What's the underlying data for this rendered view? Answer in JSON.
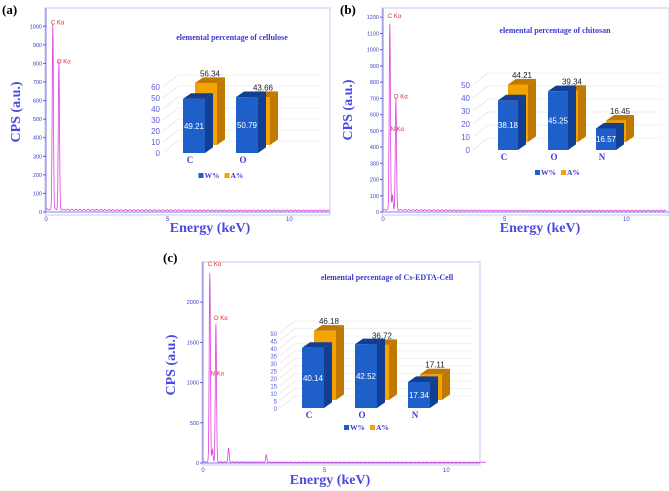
{
  "chart_data": [
    {
      "panel": "(a)",
      "type": "line",
      "xlabel": "Energy (keV)",
      "ylabel": "CPS (a.u.)",
      "xlim": [
        0,
        12
      ],
      "ylim": [
        0,
        1050
      ],
      "xticks": [
        0,
        5,
        10
      ],
      "yticks": [
        0,
        100,
        200,
        300,
        400,
        500,
        600,
        700,
        800,
        900,
        1000
      ],
      "peaks": [
        {
          "label": "C Kα",
          "energy": 0.28,
          "cps": 1000,
          "label_cps": 1010
        },
        {
          "label": "O Kα",
          "energy": 0.53,
          "cps": 800,
          "label_cps": 800
        }
      ],
      "inset": {
        "type": "bar3d",
        "title": "elemental percentage of cellulose",
        "categories": [
          "C",
          "O"
        ],
        "ylim": [
          0,
          60
        ],
        "yticks": [
          0,
          10,
          20,
          30,
          40,
          50,
          60
        ],
        "series": [
          {
            "name": "W%",
            "color": "#1f5fc9",
            "values": [
              49.21,
              50.79
            ]
          },
          {
            "name": "A%",
            "color": "#f5a300",
            "values": [
              56.34,
              43.66
            ]
          }
        ]
      }
    },
    {
      "panel": "(b)",
      "type": "line",
      "xlabel": "Energy (keV)",
      "ylabel": "CPS (a.u.)",
      "xlim": [
        0,
        12
      ],
      "ylim": [
        0,
        1220
      ],
      "xticks": [
        0,
        5,
        10
      ],
      "yticks": [
        0,
        100,
        200,
        300,
        400,
        500,
        600,
        700,
        800,
        900,
        1000,
        1100,
        1200
      ],
      "peaks": [
        {
          "label": "C Kα",
          "energy": 0.28,
          "cps": 1150,
          "label_cps": 1195
        },
        {
          "label": "N Kα",
          "energy": 0.39,
          "cps": 90,
          "label_cps": 500
        },
        {
          "label": "O Kα",
          "energy": 0.53,
          "cps": 690,
          "label_cps": 700
        }
      ],
      "inset": {
        "type": "bar3d",
        "title": "elemental percentage of chitosan",
        "categories": [
          "C",
          "O",
          "N"
        ],
        "ylim": [
          0,
          50
        ],
        "yticks": [
          0,
          10,
          20,
          30,
          40,
          50
        ],
        "series": [
          {
            "name": "W%",
            "color": "#1f5fc9",
            "values": [
              38.18,
              45.25,
              16.57
            ]
          },
          {
            "name": "A%",
            "color": "#f5a300",
            "values": [
              44.21,
              39.34,
              16.45
            ]
          }
        ]
      }
    },
    {
      "panel": "(c)",
      "type": "line",
      "xlabel": "Energy (keV)",
      "ylabel": "CPS (a.u.)",
      "xlim": [
        0,
        12
      ],
      "ylim": [
        0,
        2500
      ],
      "xticks": [
        0,
        5,
        10
      ],
      "yticks": [
        0,
        500,
        1000,
        1500,
        2000
      ],
      "peaks": [
        {
          "label": "C Kα",
          "energy": 0.28,
          "cps": 2350,
          "label_cps": 2450
        },
        {
          "label": "N Kα",
          "energy": 0.39,
          "cps": 150,
          "label_cps": 1090
        },
        {
          "label": "O Kα",
          "energy": 0.53,
          "cps": 1720,
          "label_cps": 1780
        },
        {
          "label": "",
          "energy": 1.05,
          "cps": 170,
          "label_cps": 0
        },
        {
          "label": "",
          "energy": 2.6,
          "cps": 90,
          "label_cps": 0
        }
      ],
      "inset": {
        "type": "bar3d",
        "title": "elemental percentage of Cs-EDTA-Cell",
        "categories": [
          "C",
          "O",
          "N"
        ],
        "ylim": [
          0,
          50
        ],
        "yticks": [
          0,
          5,
          10,
          15,
          20,
          25,
          30,
          35,
          40,
          45,
          50
        ],
        "series": [
          {
            "name": "W%",
            "color": "#1f5fc9",
            "values": [
              40.14,
              42.52,
              17.34
            ]
          },
          {
            "name": "A%",
            "color": "#f5a300",
            "values": [
              46.18,
              36.72,
              17.11
            ]
          }
        ]
      }
    }
  ]
}
